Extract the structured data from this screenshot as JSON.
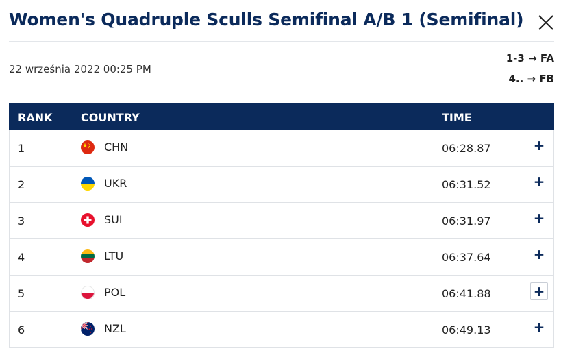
{
  "header": {
    "title": "Women's Quadruple Sculls Semifinal A/B 1 (Semifinal)",
    "close_icon": "close-icon",
    "date": "22 września 2022 00:25 PM",
    "progression": [
      "1-3 → FA",
      "4.. → FB"
    ]
  },
  "table": {
    "columns": {
      "rank": "RANK",
      "country": "COUNTRY",
      "time": "TIME"
    },
    "rows": [
      {
        "rank": "1",
        "country": "CHN",
        "time": "06:28.87",
        "flag": "china-flag-icon"
      },
      {
        "rank": "2",
        "country": "UKR",
        "time": "06:31.52",
        "flag": "ukraine-flag-icon"
      },
      {
        "rank": "3",
        "country": "SUI",
        "time": "06:31.97",
        "flag": "switzerland-flag-icon"
      },
      {
        "rank": "4",
        "country": "LTU",
        "time": "06:37.64",
        "flag": "lithuania-flag-icon"
      },
      {
        "rank": "5",
        "country": "POL",
        "time": "06:41.88",
        "flag": "poland-flag-icon"
      },
      {
        "rank": "6",
        "country": "NZL",
        "time": "06:49.13",
        "flag": "new-zealand-flag-icon"
      }
    ],
    "expand_label": "+"
  },
  "colors": {
    "navy": "#0b2a5b",
    "divider": "#dfe2e6"
  }
}
